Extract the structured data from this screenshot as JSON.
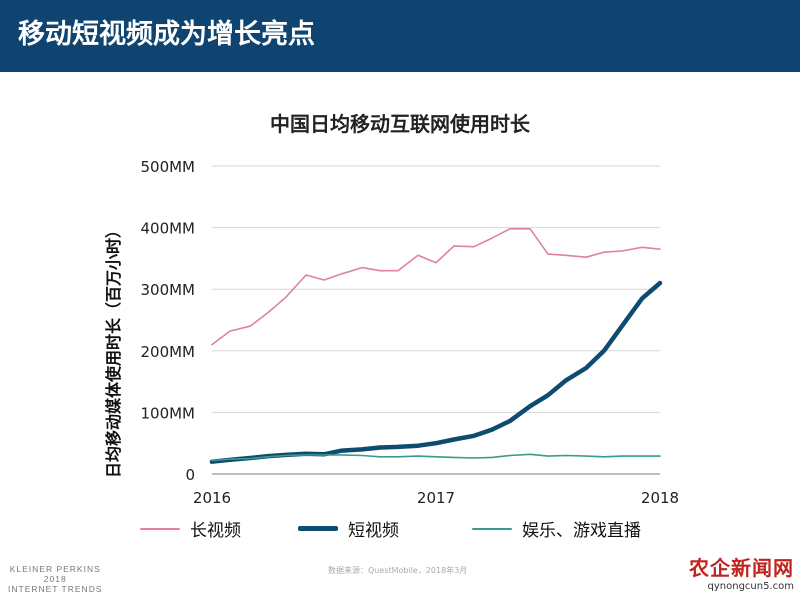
{
  "header": {
    "title": "移动短视频成为增长亮点"
  },
  "chart_data": {
    "type": "line",
    "title": "中国日均移动互联网使用时长",
    "ylabel": "日均移动媒体使用时长（百万小时）",
    "xlabel": "",
    "ylim": [
      0,
      500
    ],
    "yticks": [
      "0",
      "100MM",
      "200MM",
      "300MM",
      "400MM",
      "500MM"
    ],
    "xticks": [
      {
        "label": "2016",
        "x": 2016
      },
      {
        "label": "2017",
        "x": 2017
      },
      {
        "label": "2018",
        "x": 2018
      }
    ],
    "grid": true,
    "legend_position": "bottom",
    "x": [
      2016.0,
      2016.08,
      2016.17,
      2016.25,
      2016.33,
      2016.42,
      2016.5,
      2016.58,
      2016.67,
      2016.75,
      2016.83,
      2016.92,
      2017.0,
      2017.08,
      2017.17,
      2017.25,
      2017.33,
      2017.42,
      2017.5,
      2017.58,
      2017.67,
      2017.75,
      2017.83,
      2017.92,
      2018.0
    ],
    "series": [
      {
        "name": "长视频",
        "color": "#e0829a",
        "width": 1.6,
        "values": [
          210,
          232,
          240,
          262,
          287,
          323,
          315,
          325,
          335,
          330,
          330,
          355,
          343,
          370,
          369,
          383,
          398,
          398,
          357,
          355,
          352,
          360,
          362,
          368,
          365
        ]
      },
      {
        "name": "短视频",
        "color": "#0e4b6e",
        "width": 4.5,
        "values": [
          20,
          23,
          26,
          29,
          31,
          33,
          32,
          38,
          40,
          43,
          44,
          46,
          50,
          56,
          62,
          72,
          86,
          110,
          128,
          152,
          172,
          200,
          240,
          285,
          310
        ]
      },
      {
        "name": "娱乐、游戏直播",
        "color": "#3a9a8c",
        "width": 1.6,
        "values": [
          22,
          24,
          25,
          28,
          30,
          31,
          31,
          31,
          30,
          28,
          28,
          29,
          28,
          27,
          26,
          27,
          30,
          32,
          29,
          30,
          29,
          28,
          29,
          29,
          29
        ]
      }
    ]
  },
  "footer": {
    "org_line1": "KLEINER PERKINS",
    "org_line2": "2018",
    "org_line3": "INTERNET TRENDS",
    "source": "数据来源：QuestMobile，2018年3月"
  },
  "watermark": {
    "logo": "农企新闻网",
    "url": "qynongcun5.com"
  }
}
